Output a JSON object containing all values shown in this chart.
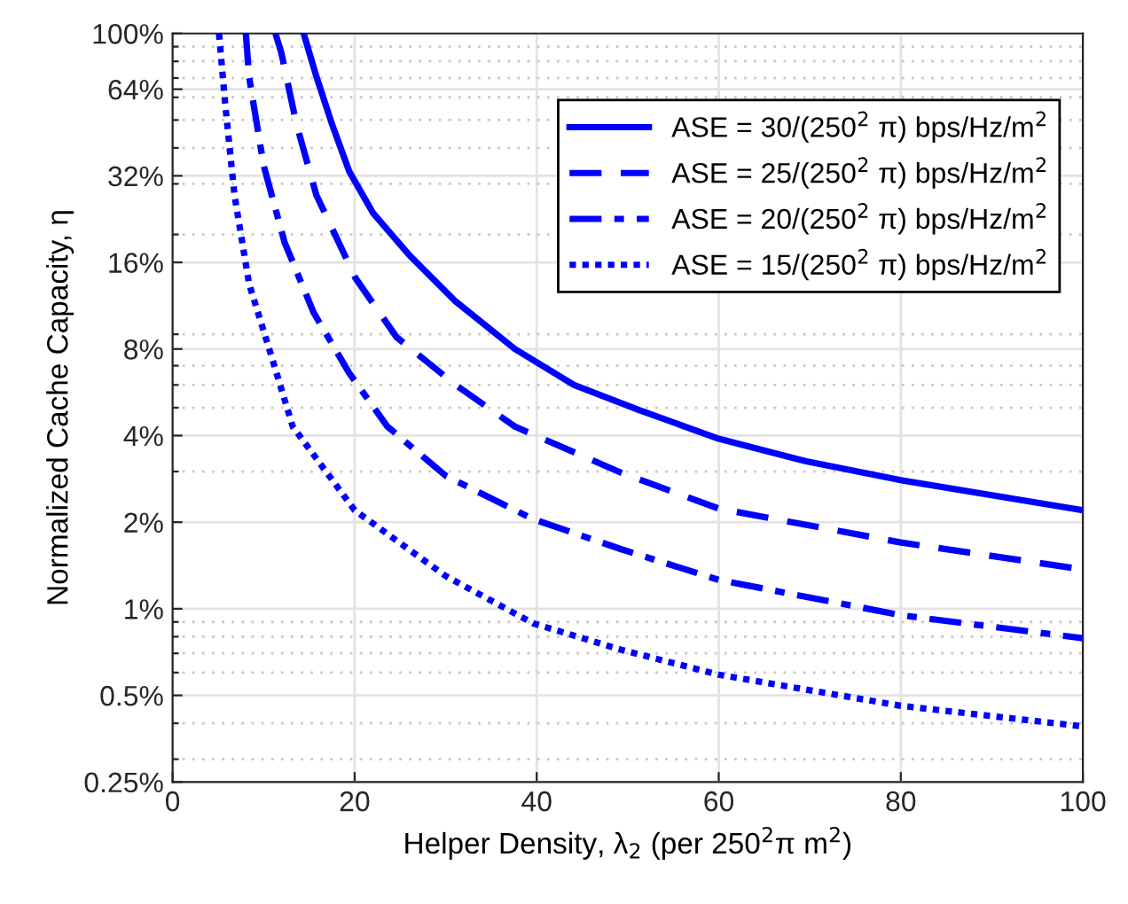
{
  "chart_data": {
    "type": "line",
    "xlabel": "Helper Density, λ$_{2}$ (per 250$^{2}$π m$^{2}$)",
    "ylabel": "Normalized Cache Capacity, η",
    "log": "y",
    "grid": true,
    "legend": "top right",
    "marker": "none",
    "xlim": [
      0,
      100
    ],
    "xticks": [
      0,
      20,
      40,
      60,
      80,
      100
    ],
    "ylim": [
      0.25,
      100
    ],
    "yticks": [
      {
        "value": 0.25,
        "label": "0.25%"
      },
      {
        "value": 0.3,
        "label": null
      },
      {
        "value": 0.4,
        "label": null
      },
      {
        "value": 0.5,
        "label": "0.5%"
      },
      {
        "value": 0.6,
        "label": null
      },
      {
        "value": 0.7,
        "label": null
      },
      {
        "value": 0.8,
        "label": null
      },
      {
        "value": 0.9,
        "label": null
      },
      {
        "value": 1,
        "label": "1%"
      },
      {
        "value": 2,
        "label": "2%"
      },
      {
        "value": 3,
        "label": null
      },
      {
        "value": 4,
        "label": "4%"
      },
      {
        "value": 5,
        "label": null
      },
      {
        "value": 6,
        "label": null
      },
      {
        "value": 7,
        "label": null
      },
      {
        "value": 8,
        "label": "8%"
      },
      {
        "value": 9,
        "label": null
      },
      {
        "value": 16,
        "label": "16%"
      },
      {
        "value": 20,
        "label": null
      },
      {
        "value": 30,
        "label": null
      },
      {
        "value": 32,
        "label": "32%"
      },
      {
        "value": 40,
        "label": null
      },
      {
        "value": 50,
        "label": null
      },
      {
        "value": 60,
        "label": null
      },
      {
        "value": 64,
        "label": "64%"
      },
      {
        "value": 70,
        "label": null
      },
      {
        "value": 80,
        "label": null
      },
      {
        "value": 90,
        "label": null
      },
      {
        "value": 100,
        "label": "100%"
      }
    ],
    "series": [
      {
        "name": "ASE = 30/(250$^{2}$ π) bps/Hz/m$^{2}$",
        "color": "#0000ff",
        "line_style": "solid",
        "x": [
          14.4,
          15.8,
          17.5,
          19.4,
          22.0,
          25.9,
          31.1,
          37.6,
          44.1,
          51.3,
          60,
          69.5,
          80,
          100
        ],
        "values": [
          100,
          70.8,
          48.5,
          33.2,
          23.8,
          17.1,
          11.7,
          8.0,
          6.0,
          4.9,
          3.9,
          3.26,
          2.8,
          2.2
        ]
      },
      {
        "name": "ASE = 25/(250$^{2}$ π) bps/Hz/m$^{2}$",
        "color": "#0000ff",
        "line_style": "dashed",
        "x": [
          11.3,
          11.95,
          13.6,
          15.8,
          20.1,
          24.6,
          31.1,
          37.6,
          49.3,
          60,
          80,
          100
        ],
        "values": [
          100,
          85.5,
          48.5,
          27.4,
          14.1,
          8.8,
          6.0,
          4.3,
          2.97,
          2.23,
          1.7,
          1.37
        ]
      },
      {
        "name": "ASE = 20/(250$^{2}$ π) bps/Hz/m$^{2}$",
        "color": "#0000ff",
        "line_style": "dashdot",
        "x": [
          8.05,
          8.4,
          10.0,
          12.3,
          15.5,
          19.4,
          23.6,
          30,
          39.6,
          49.3,
          60,
          80,
          100
        ],
        "values": [
          100,
          70.8,
          34.8,
          18.8,
          10.7,
          6.6,
          4.3,
          2.9,
          2.05,
          1.61,
          1.26,
          0.95,
          0.79
        ]
      },
      {
        "name": "ASE = 15/(250$^{2}$ π) bps/Hz/m$^{2}$",
        "color": "#0000ff",
        "line_style": "dotted",
        "x": [
          5.1,
          5.8,
          6.8,
          8.4,
          11.0,
          13.2,
          20,
          30,
          39.6,
          49.3,
          60,
          80,
          100
        ],
        "values": [
          100,
          55.9,
          27.4,
          13.5,
          7.3,
          4.3,
          2.2,
          1.3,
          0.89,
          0.72,
          0.59,
          0.46,
          0.39
        ]
      }
    ]
  }
}
